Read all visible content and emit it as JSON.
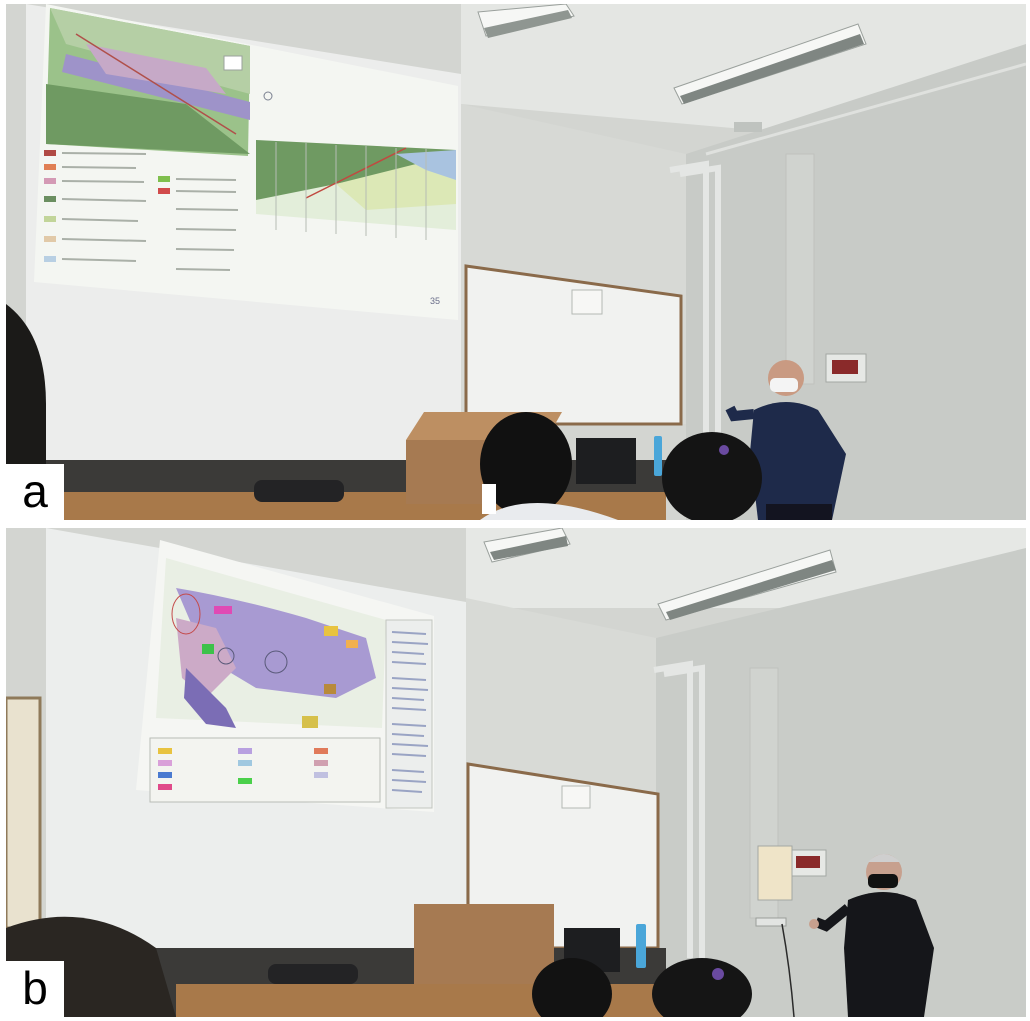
{
  "figure": {
    "panel_a": {
      "label": "a",
      "slide_number": "35"
    },
    "panel_b": {
      "label": "b"
    }
  },
  "colors": {
    "wall": "#d9dbd8",
    "screen": "#e9ebea",
    "podium": "#a67a52",
    "desk": "#a8794a",
    "shirt_a": "#1e2a4a",
    "shirt_b": "#15161a",
    "map_green": "#6f9a62",
    "map_purple": "#a89ad2"
  }
}
